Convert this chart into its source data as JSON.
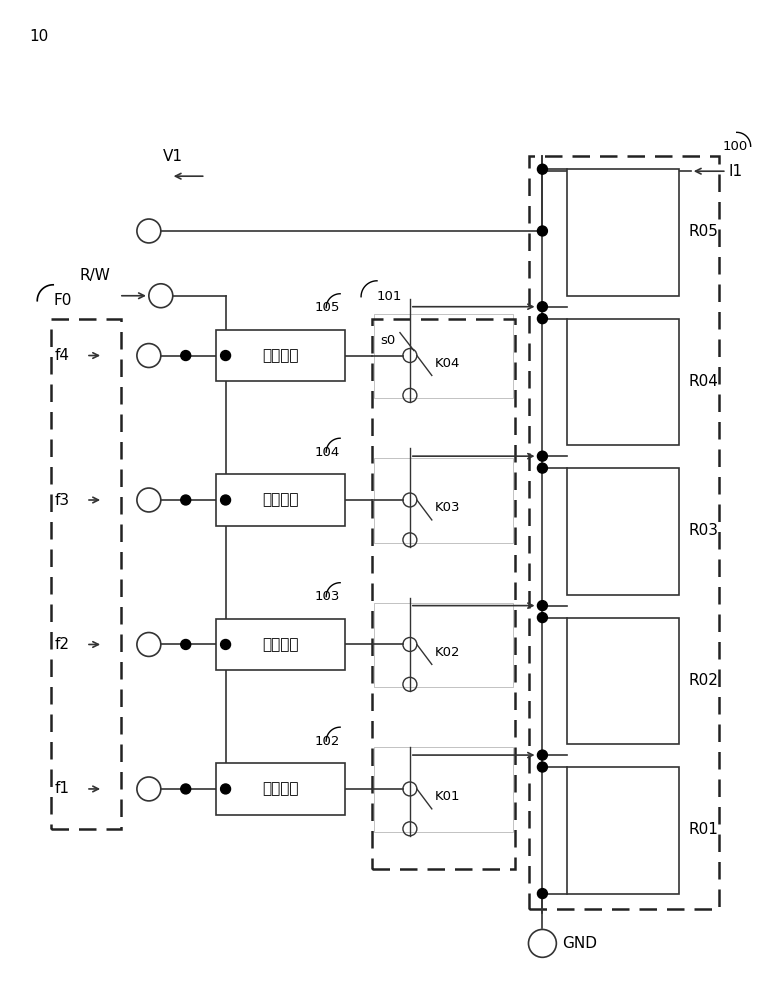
{
  "fig_width": 7.64,
  "fig_height": 10.0,
  "bg_color": "#ffffff",
  "line_color": "#333333",
  "text_box": "选通单元",
  "label_10": "10",
  "label_100": "100",
  "label_101": "101",
  "label_F0": "F0",
  "label_V1": "V1",
  "label_RW": "R/W",
  "label_I1": "I1",
  "label_GND": "GND",
  "label_s0": "s0",
  "labels_f": [
    "f4",
    "f3",
    "f2",
    "f1"
  ],
  "labels_unit": [
    "105",
    "104",
    "103",
    "102"
  ],
  "labels_K": [
    "K04",
    "K03",
    "K02",
    "K01"
  ],
  "labels_R": [
    "R05",
    "R04",
    "R03",
    "R02",
    "R01"
  ],
  "font_size": 11,
  "font_size_small": 9.5
}
